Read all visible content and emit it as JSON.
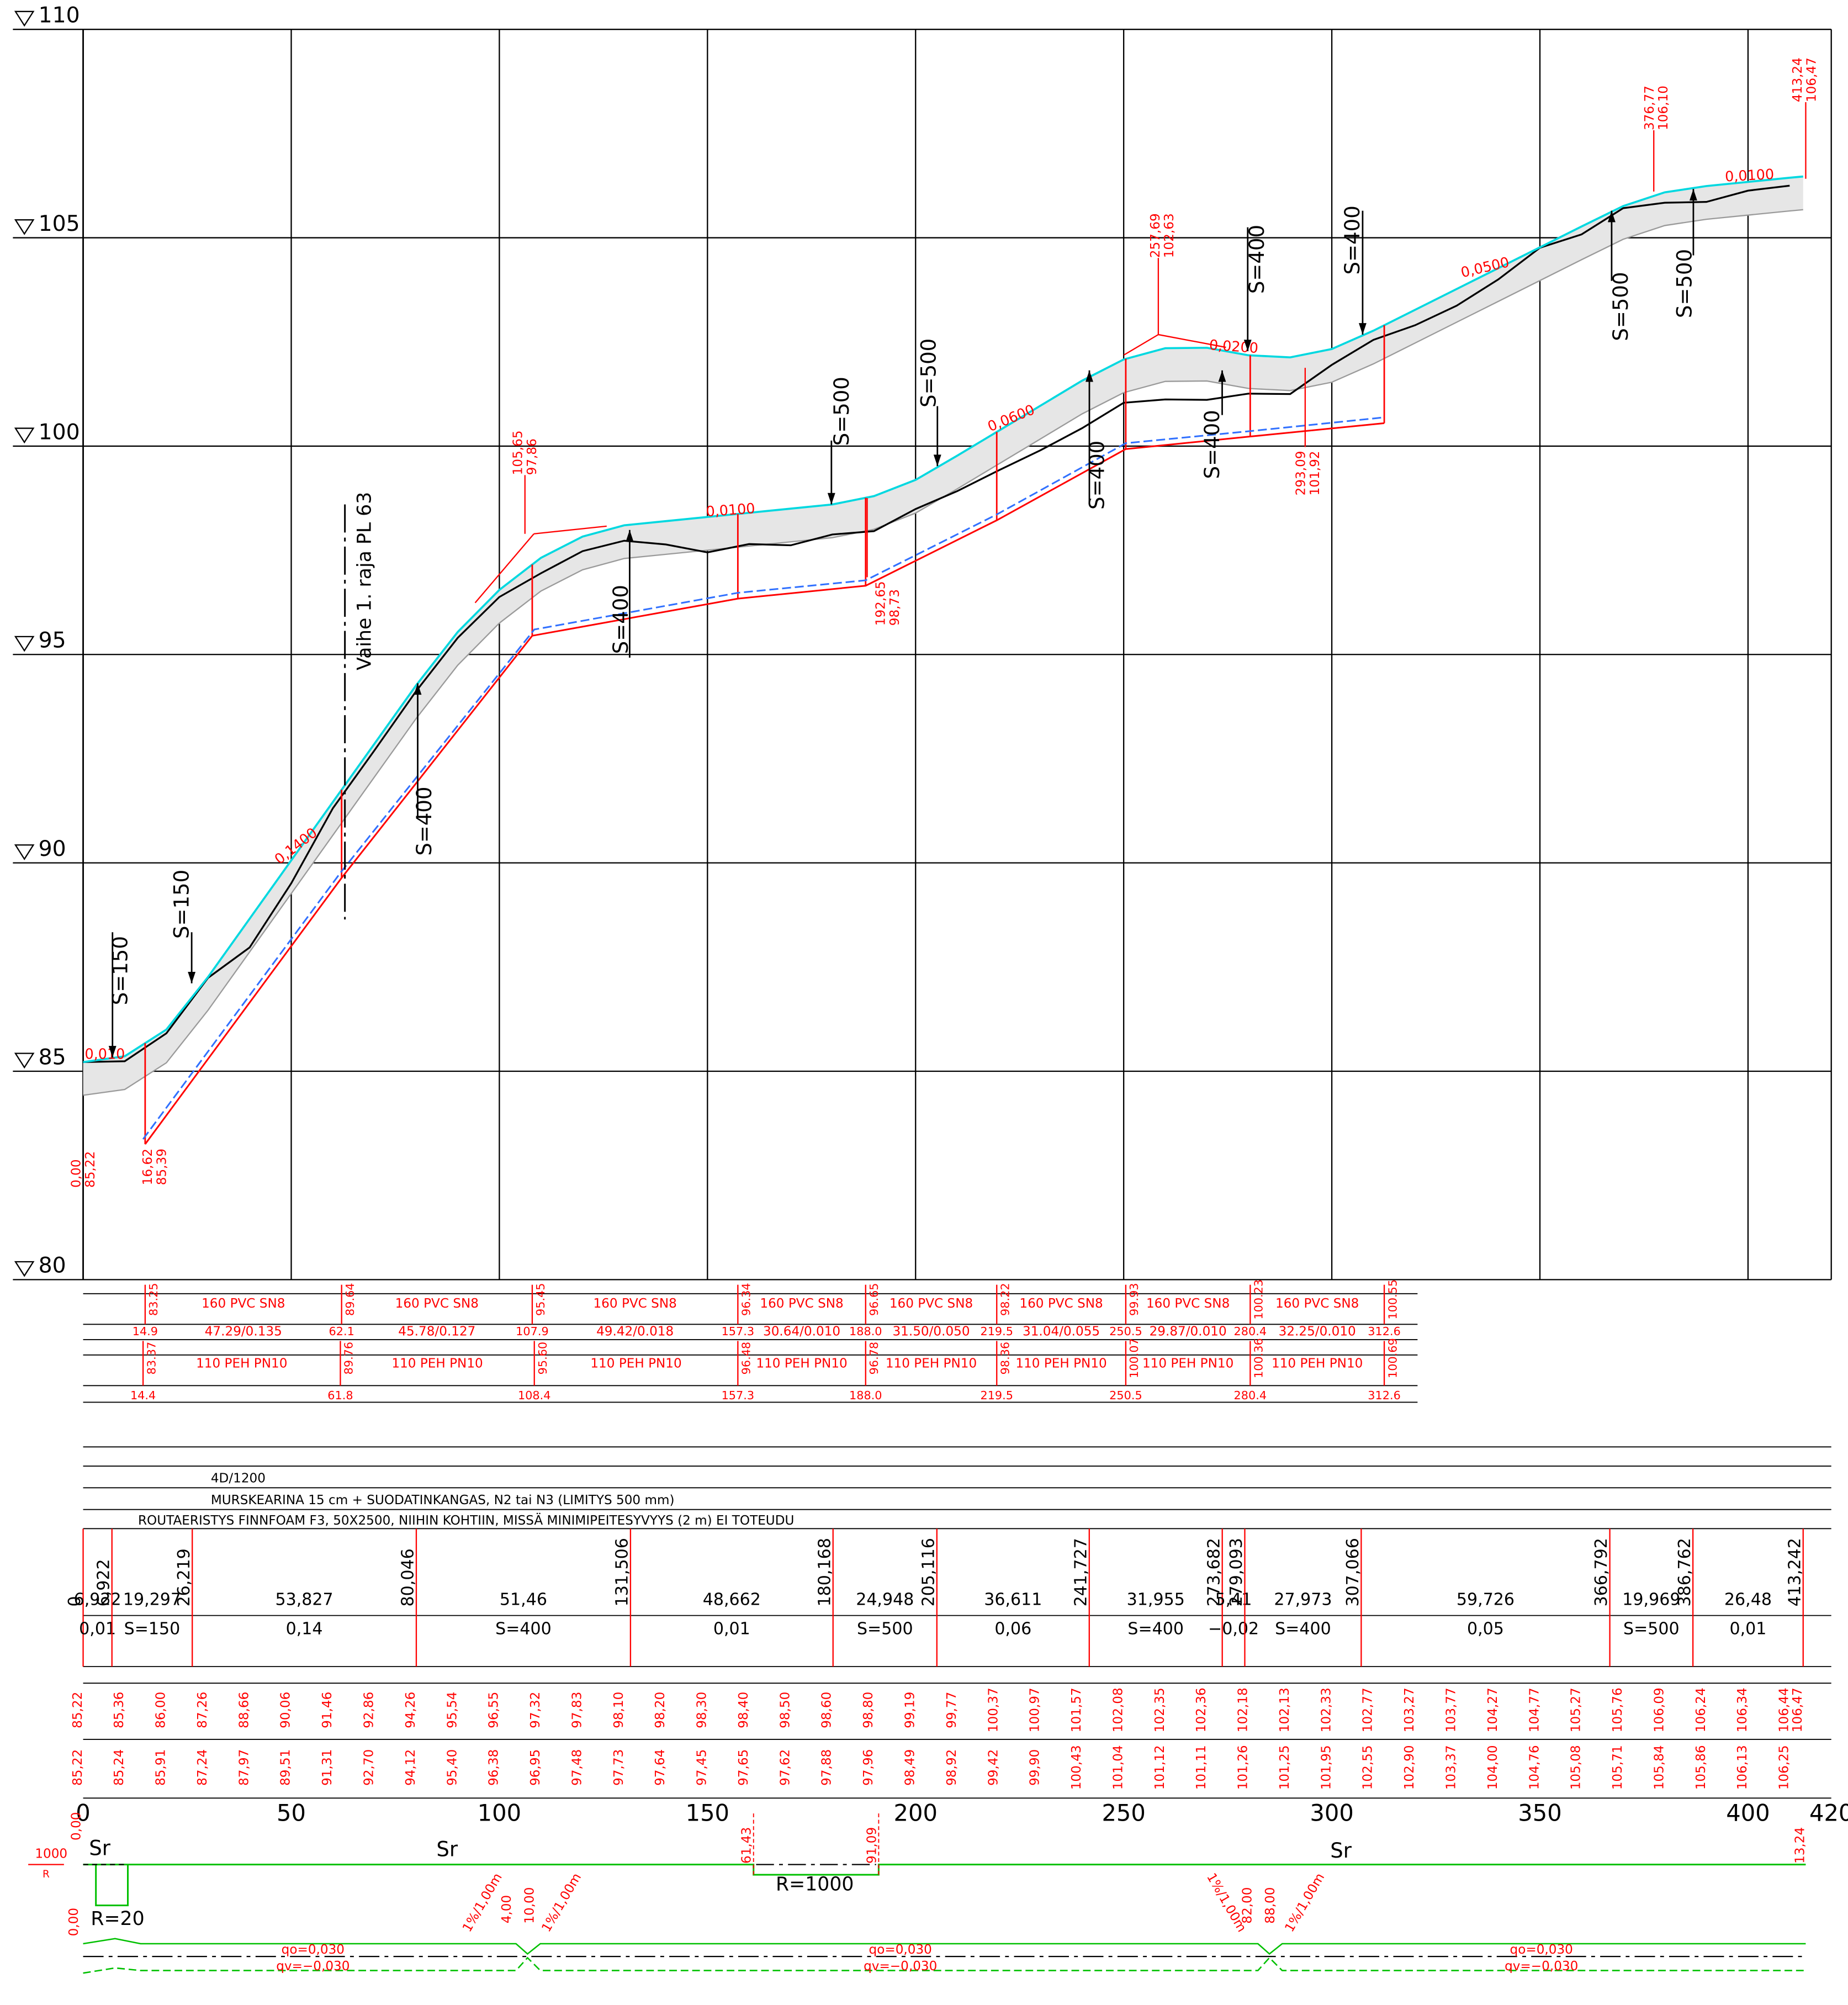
{
  "chart_data": {
    "type": "line",
    "xlim": [
      0,
      420
    ],
    "ylim": [
      80,
      110
    ],
    "xticks": [
      0,
      50,
      100,
      150,
      200,
      250,
      300,
      350,
      400,
      420
    ],
    "yticks": [
      80,
      85,
      90,
      95,
      100,
      105,
      110
    ],
    "grid": true,
    "x": [
      0,
      10,
      20,
      30,
      40,
      50,
      60,
      70,
      80,
      90,
      100,
      110,
      120,
      130,
      140,
      150,
      160,
      170,
      180,
      190,
      200,
      210,
      220,
      230,
      240,
      250,
      260,
      270,
      280,
      290,
      300,
      310,
      320,
      330,
      340,
      350,
      360,
      370,
      380,
      390,
      400,
      410,
      413.242
    ],
    "series": [
      {
        "color": "#00d8e0",
        "values": [
          85.22,
          85.36,
          86.0,
          87.26,
          88.66,
          90.06,
          91.46,
          92.86,
          94.26,
          95.54,
          96.55,
          97.32,
          97.83,
          98.1,
          98.2,
          98.3,
          98.4,
          98.5,
          98.6,
          98.8,
          99.19,
          99.77,
          100.37,
          100.97,
          101.57,
          102.08,
          102.35,
          102.36,
          102.18,
          102.13,
          102.33,
          102.77,
          103.27,
          103.77,
          104.27,
          104.77,
          105.27,
          105.76,
          106.09,
          106.24,
          106.34,
          106.44,
          106.47
        ],
        "value_labels": [
          "85,22",
          "85,36",
          "86,00",
          "87,26",
          "88,66",
          "90,06",
          "91,46",
          "92,86",
          "94,26",
          "95,54",
          "96,55",
          "97,32",
          "97,83",
          "98,10",
          "98,20",
          "98,30",
          "98,40",
          "98,50",
          "98,60",
          "98,80",
          "99,19",
          "99,77",
          "100,37",
          "100,97",
          "101,57",
          "102,08",
          "102,35",
          "102,36",
          "102,18",
          "102,13",
          "102,33",
          "102,77",
          "103,27",
          "103,77",
          "104,27",
          "104,77",
          "105,27",
          "105,76",
          "106,09",
          "106,24",
          "106,34",
          "106,44",
          "106,47"
        ]
      },
      {
        "color": "#000000",
        "values": [
          85.22,
          85.24,
          85.91,
          87.24,
          87.97,
          89.51,
          91.31,
          92.7,
          94.12,
          95.4,
          96.38,
          96.95,
          97.48,
          97.73,
          97.64,
          97.45,
          97.65,
          97.62,
          97.88,
          97.96,
          98.49,
          98.92,
          99.42,
          99.9,
          100.43,
          101.04,
          101.12,
          101.11,
          101.26,
          101.25,
          101.95,
          102.55,
          102.9,
          103.37,
          104.0,
          104.76,
          105.08,
          105.71,
          105.84,
          105.86,
          106.13,
          106.25,
          null
        ],
        "value_labels": [
          "85,22",
          "85,24",
          "85,91",
          "87,24",
          "87,97",
          "89,51",
          "91,31",
          "92,70",
          "94,12",
          "95,40",
          "96,38",
          "96,95",
          "97,48",
          "97,73",
          "97,64",
          "97,45",
          "97,65",
          "97,62",
          "97,88",
          "97,96",
          "98,49",
          "98,92",
          "99,42",
          "99,90",
          "100,43",
          "101,04",
          "101,12",
          "101,11",
          "101,26",
          "101,25",
          "101,95",
          "102,55",
          "102,90",
          "103,37",
          "104,00",
          "104,76",
          "105,08",
          "105,71",
          "105,84",
          "105,86",
          "106,13",
          "106,25",
          null
        ]
      }
    ],
    "slope_labels": [
      "0,010",
      "0,1400",
      "0,0100",
      "0,0600",
      "0,0200",
      "0,0500",
      "0,0100"
    ],
    "s_labels": [
      "S=150",
      "S=150",
      "S=400",
      "S=400",
      "S=500",
      "S=500",
      "S=400",
      "S=400",
      "S=400",
      "S=400",
      "S=500",
      "S=500"
    ],
    "stage_label": "Vaihe 1. raja PL 63",
    "annotations": [
      {
        "station": "0,00",
        "elevation": "85,22"
      },
      {
        "station": "16,62",
        "elevation": "85,39"
      },
      {
        "station": "105,65",
        "elevation": "97,86"
      },
      {
        "station": "192,65",
        "elevation": "98,73"
      },
      {
        "station": "257,69",
        "elevation": "102,63"
      },
      {
        "station": "293,09",
        "elevation": "101,92"
      },
      {
        "station": "376,77",
        "elevation": "106,10"
      },
      {
        "station": "413,24",
        "elevation": "106,47"
      }
    ]
  },
  "pipes": [
    {
      "name": "160 PVC SN8",
      "color": "#ff0000",
      "stations": [
        14.9,
        62.1,
        107.9,
        157.3,
        {
          "value": 188,
          "label": "188.0"
        },
        219.5,
        250.5,
        280.4,
        312.6
      ],
      "elevations": [
        83.25,
        89.64,
        95.45,
        96.34,
        96.65,
        98.22,
        99.93,
        100.23,
        100.55
      ],
      "segment_labels": [
        "47.29/0.135",
        "45.78/0.127",
        "49.42/0.018",
        "30.64/0.010",
        "31.50/0.050",
        "31.04/0.055",
        "29.87/0.010",
        "32.25/0.010"
      ]
    },
    {
      "name": "110 PEH PN10",
      "color": "#3070ff",
      "stations": [
        14.4,
        61.8,
        108.4,
        157.3,
        {
          "value": 188,
          "label": "188.0"
        },
        219.5,
        250.5,
        280.4,
        312.6
      ],
      "elevations": [
        83.37,
        89.76,
        {
          "value": 95.6,
          "label": "95.60"
        },
        96.48,
        96.78,
        98.36,
        100.07,
        100.36,
        100.69
      ]
    }
  ],
  "layers": [
    "4D/1200",
    "MURSKEARINA 15 cm + SUODATINKANGAS, N2 tai N3 (LIMITYS 500 mm)",
    "ROUTAERISTYS FINNFOAM F3, 50X2500, NIIHIN KOHTIIN, MISSÄ MINIMIPEITESYVYYS (2 m) EI TOTEUDU"
  ],
  "vertical_alignment": {
    "breakpoints": [
      0,
      {
        "value": 6.922,
        "label": "6,922"
      },
      {
        "value": 26.219,
        "label": "26,219"
      },
      {
        "value": 80.046,
        "label": "80,046"
      },
      {
        "value": 131.506,
        "label": "131,506"
      },
      {
        "value": 180.168,
        "label": "180,168"
      },
      {
        "value": 205.116,
        "label": "205,116"
      },
      {
        "value": 241.727,
        "label": "241,727"
      },
      {
        "value": 273.682,
        "label": "273,682"
      },
      {
        "value": 279.093,
        "label": "279,093"
      },
      {
        "value": 307.066,
        "label": "307,066"
      },
      {
        "value": 366.792,
        "label": "366,792"
      },
      {
        "value": 386.762,
        "label": "386,762"
      },
      {
        "value": 413.242,
        "label": "413,242"
      }
    ],
    "lengths": [
      "6,922",
      "19,297",
      "53,827",
      "51,46",
      "48,662",
      "24,948",
      "36,611",
      "31,955",
      "5,41",
      "27,973",
      "59,726",
      "19,969",
      "26,48"
    ],
    "grades": [
      "0,01",
      "S=150",
      "0,14",
      "S=400",
      "0,01",
      "S=500",
      "0,06",
      "S=400",
      "−0,02",
      "S=400",
      "0,05",
      "S=500",
      "0,01"
    ]
  },
  "horizontal_alignment": {
    "radius_scale": "1000",
    "radius_axis": "R",
    "labels": [
      "Sr",
      "Sr",
      "Sr"
    ],
    "curve_1": "R=20",
    "curve_2": "R=1000",
    "stations": [
      "0,00",
      "61,43",
      "91,09",
      "13,24"
    ]
  },
  "cross_slope": {
    "stations": [
      "0,00",
      "4,00",
      "10,00",
      "82,00",
      "88,00"
    ],
    "transitions": [
      "1%/1,00m",
      "1%/1,00m",
      "1%/1,00m",
      "1%/1,00m"
    ],
    "qo": "qo=0,030",
    "qv": "qv=−0,030"
  }
}
